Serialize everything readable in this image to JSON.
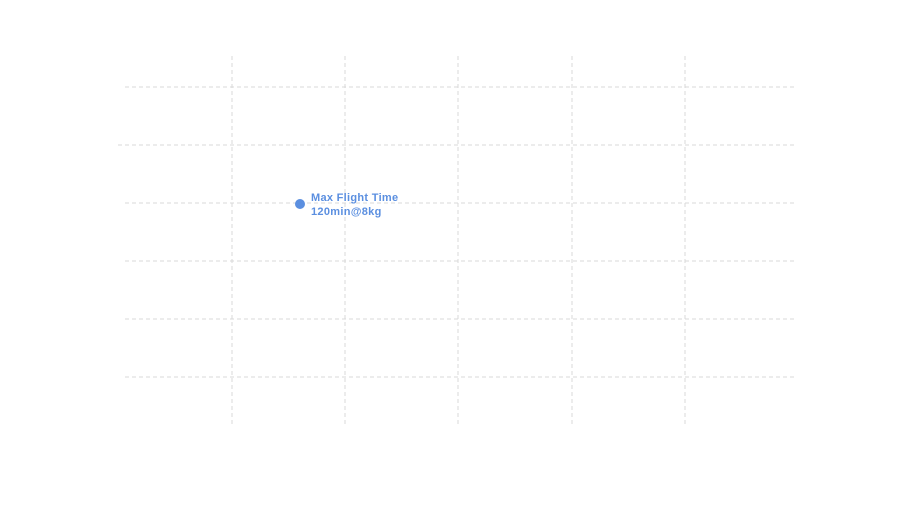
{
  "point": {
    "label": "Max Flight Time",
    "detail": "120min@8kg"
  }
}
